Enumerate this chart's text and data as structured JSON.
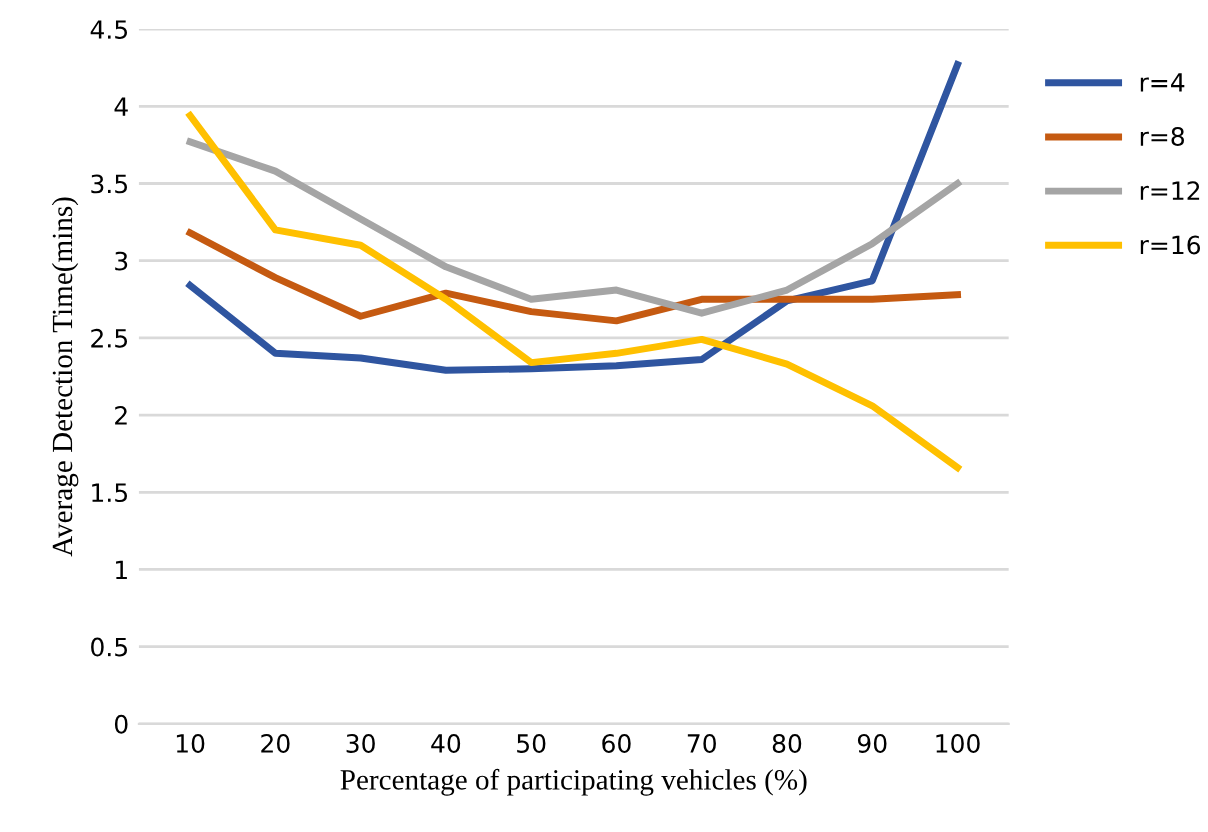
{
  "chart_data": {
    "type": "line",
    "xlabel": "Percentage of participating vehicles (%)",
    "ylabel": "Average Detection Time(mins)",
    "categories": [
      "10",
      "20",
      "30",
      "40",
      "50",
      "60",
      "70",
      "80",
      "90",
      "100"
    ],
    "series": [
      {
        "name": "r=4",
        "color": "#2f55a0",
        "values": [
          2.84,
          2.4,
          2.37,
          2.29,
          2.3,
          2.32,
          2.36,
          2.74,
          2.87,
          4.27
        ]
      },
      {
        "name": "r=8",
        "color": "#c55a11",
        "values": [
          3.18,
          2.89,
          2.64,
          2.79,
          2.67,
          2.61,
          2.75,
          2.75,
          2.75,
          2.78
        ]
      },
      {
        "name": "r=12",
        "color": "#a5a5a5",
        "values": [
          3.77,
          3.58,
          3.27,
          2.96,
          2.75,
          2.81,
          2.66,
          2.81,
          3.11,
          3.5
        ]
      },
      {
        "name": "r=16",
        "color": "#ffc000",
        "values": [
          3.94,
          3.2,
          3.1,
          2.75,
          2.34,
          2.4,
          2.49,
          2.33,
          2.06,
          1.66
        ]
      }
    ],
    "ylim": [
      0,
      4.5
    ],
    "yticks": [
      0,
      0.5,
      1,
      1.5,
      2,
      2.5,
      3,
      3.5,
      4,
      4.5
    ],
    "grid": "y",
    "legend": "right",
    "marker": "none",
    "line_style": "solid"
  }
}
